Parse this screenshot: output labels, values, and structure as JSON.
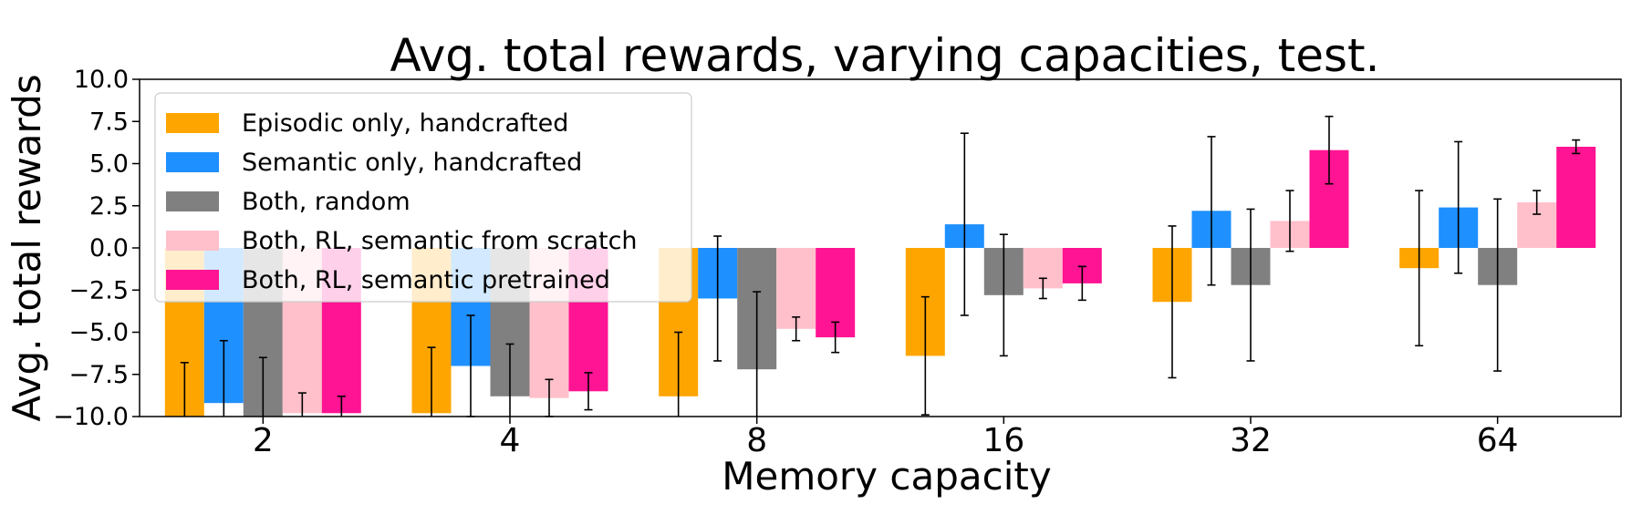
{
  "chart_data": {
    "type": "bar",
    "title": "Avg. total rewards, varying capacities, test.",
    "xlabel": "Memory capacity",
    "ylabel": "Avg. total rewards",
    "ylim": [
      -10,
      10
    ],
    "yticks": [
      "−10.0",
      "−7.5",
      "−5.0",
      "−2.5",
      "0.0",
      "2.5",
      "5.0",
      "7.5",
      "10.0"
    ],
    "categories": [
      "2",
      "4",
      "8",
      "16",
      "32",
      "64"
    ],
    "legend_position": "upper-left",
    "grid": false,
    "series": [
      {
        "name": "Episodic only, handcrafted",
        "color": "#FFA500",
        "values": [
          -10.0,
          -9.8,
          -8.8,
          -6.4,
          -3.2,
          -1.2
        ],
        "errors": [
          3.2,
          3.9,
          3.8,
          3.5,
          4.5,
          4.6
        ]
      },
      {
        "name": "Semantic only, handcrafted",
        "color": "#1E90FF",
        "values": [
          -9.2,
          -7.0,
          -3.0,
          1.4,
          2.2,
          2.4
        ],
        "errors": [
          3.7,
          3.0,
          3.7,
          5.4,
          4.4,
          3.9
        ]
      },
      {
        "name": "Both, random",
        "color": "#808080",
        "values": [
          -10.0,
          -8.8,
          -7.2,
          -2.8,
          -2.2,
          -2.2
        ],
        "errors": [
          3.5,
          3.1,
          4.6,
          3.6,
          4.5,
          5.1
        ]
      },
      {
        "name": "Both, RL, semantic from scratch",
        "color": "#FFC0CB",
        "values": [
          -9.8,
          -8.9,
          -4.8,
          -2.4,
          1.6,
          2.7
        ],
        "errors": [
          1.2,
          1.1,
          0.7,
          0.6,
          1.8,
          0.7
        ]
      },
      {
        "name": "Both, RL, semantic pretrained",
        "color": "#FF1493",
        "values": [
          -9.8,
          -8.5,
          -5.3,
          -2.1,
          5.8,
          6.0
        ],
        "errors": [
          1.0,
          1.1,
          0.9,
          1.0,
          2.0,
          0.4
        ]
      }
    ]
  }
}
